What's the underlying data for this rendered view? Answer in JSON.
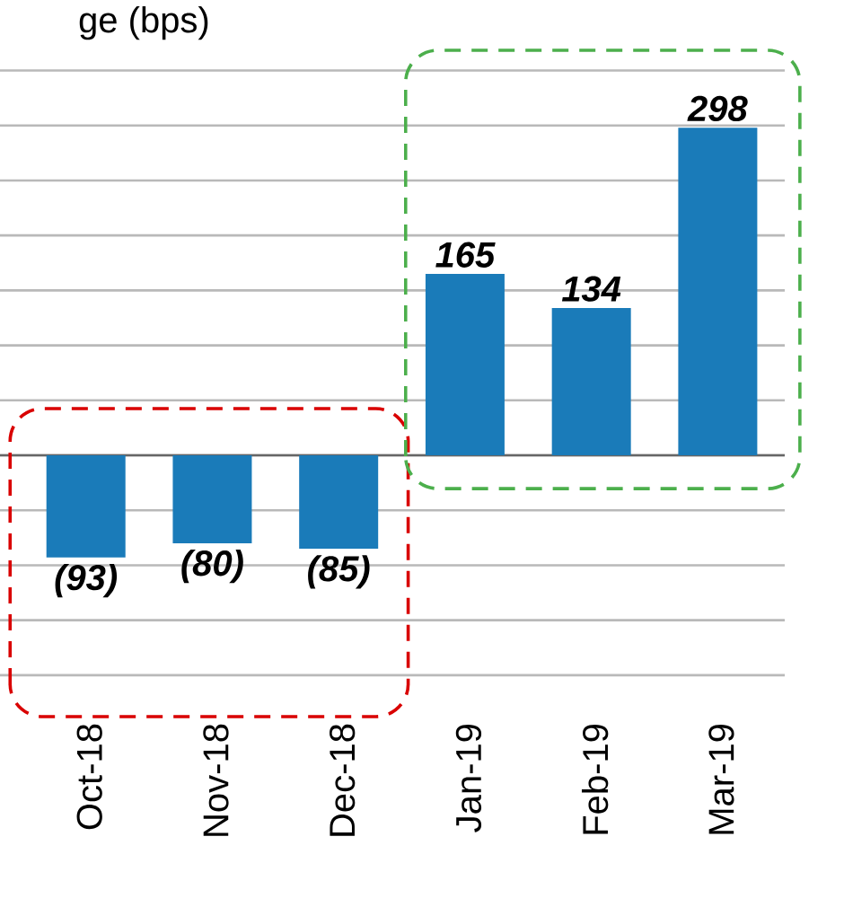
{
  "chart_data": {
    "type": "bar",
    "title": "ge (bps)",
    "categories": [
      "Oct-18",
      "Nov-18",
      "Dec-18",
      "Jan-19",
      "Feb-19",
      "Mar-19"
    ],
    "values": [
      -93,
      -80,
      -85,
      165,
      134,
      298
    ],
    "value_labels": [
      "(93)",
      "(80)",
      "(85)",
      "165",
      "134",
      "298"
    ],
    "color": "#1a7bb9",
    "tick_labels": "x",
    "grid": "y"
  }
}
